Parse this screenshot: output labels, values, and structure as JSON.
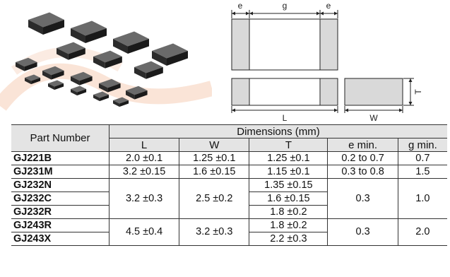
{
  "drawing": {
    "dim_e_left": "e",
    "dim_g": "g",
    "dim_e_right": "e",
    "dim_L": "L",
    "dim_W": "W",
    "dim_T": "T"
  },
  "table": {
    "header_part": "Part Number",
    "header_dims": "Dimensions (mm)",
    "columns": [
      "L",
      "W",
      "T",
      "e min.",
      "g min."
    ],
    "rows": [
      {
        "part": "GJ221B",
        "L": "2.0 ±0.1",
        "W": "1.25 ±0.1",
        "T": "1.25 ±0.1",
        "e": "0.2 to 0.7",
        "g": "0.7"
      },
      {
        "part": "GJ231M",
        "L": "3.2 ±0.15",
        "W": "1.6 ±0.15",
        "T": "1.15 ±0.1",
        "e": "0.3 to 0.8",
        "g": "1.5"
      },
      {
        "part": "GJ232N",
        "L": "3.2 ±0.3",
        "W": "2.5 ±0.2",
        "T": "1.35 ±0.15",
        "e": "0.3",
        "g": "1.0"
      },
      {
        "part": "GJ232C",
        "T": "1.6 ±0.15"
      },
      {
        "part": "GJ232R",
        "T": "1.8 ±0.2"
      },
      {
        "part": "GJ243R",
        "L": "4.5 ±0.4",
        "W": "3.2 ±0.3",
        "T": "1.8 ±0.2",
        "e": "0.3",
        "g": "2.0"
      },
      {
        "part": "GJ243X",
        "T": "2.2 ±0.3"
      }
    ]
  }
}
